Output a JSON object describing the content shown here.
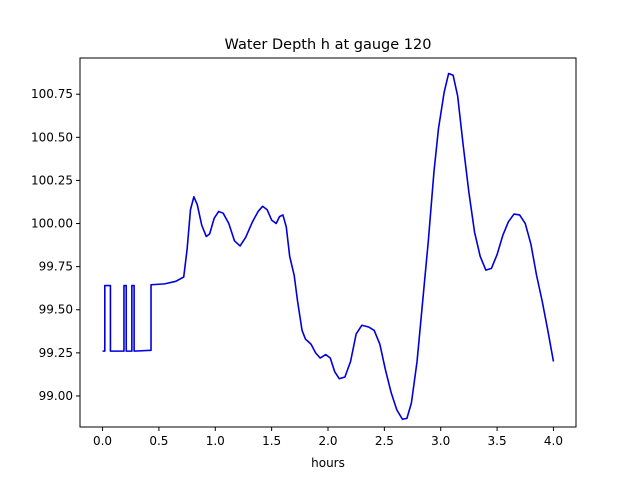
{
  "chart_data": {
    "type": "line",
    "title": "Water Depth h at gauge 120",
    "xlabel": "hours",
    "ylabel": "",
    "xlim": [
      -0.2,
      4.2
    ],
    "ylim": [
      98.82,
      100.96
    ],
    "xticks": [
      0.0,
      0.5,
      1.0,
      1.5,
      2.0,
      2.5,
      3.0,
      3.5,
      4.0
    ],
    "xtick_labels": [
      "0.0",
      "0.5",
      "1.0",
      "1.5",
      "2.0",
      "2.5",
      "3.0",
      "3.5",
      "4.0"
    ],
    "yticks": [
      99.0,
      99.25,
      99.5,
      99.75,
      100.0,
      100.25,
      100.5,
      100.75
    ],
    "ytick_labels": [
      "99.00",
      "99.25",
      "99.50",
      "99.75",
      "100.00",
      "100.25",
      "100.50",
      "100.75"
    ],
    "grid": false,
    "series": [
      {
        "color": "#0000dd",
        "points": [
          [
            0.0,
            99.26
          ],
          [
            0.02,
            99.26
          ],
          [
            0.02,
            99.64
          ],
          [
            0.07,
            99.64
          ],
          [
            0.07,
            99.26
          ],
          [
            0.19,
            99.26
          ],
          [
            0.19,
            99.64
          ],
          [
            0.21,
            99.64
          ],
          [
            0.21,
            99.26
          ],
          [
            0.26,
            99.26
          ],
          [
            0.26,
            99.64
          ],
          [
            0.28,
            99.64
          ],
          [
            0.28,
            99.26
          ],
          [
            0.43,
            99.265
          ],
          [
            0.43,
            99.645
          ],
          [
            0.55,
            99.65
          ],
          [
            0.65,
            99.665
          ],
          [
            0.72,
            99.69
          ],
          [
            0.75,
            99.85
          ],
          [
            0.78,
            100.08
          ],
          [
            0.81,
            100.155
          ],
          [
            0.84,
            100.11
          ],
          [
            0.88,
            99.99
          ],
          [
            0.92,
            99.925
          ],
          [
            0.95,
            99.94
          ],
          [
            0.99,
            100.03
          ],
          [
            1.03,
            100.07
          ],
          [
            1.07,
            100.06
          ],
          [
            1.12,
            100.0
          ],
          [
            1.17,
            99.9
          ],
          [
            1.22,
            99.87
          ],
          [
            1.27,
            99.92
          ],
          [
            1.33,
            100.01
          ],
          [
            1.38,
            100.07
          ],
          [
            1.42,
            100.1
          ],
          [
            1.46,
            100.08
          ],
          [
            1.5,
            100.02
          ],
          [
            1.54,
            100.0
          ],
          [
            1.57,
            100.04
          ],
          [
            1.6,
            100.05
          ],
          [
            1.63,
            99.98
          ],
          [
            1.66,
            99.81
          ],
          [
            1.7,
            99.7
          ],
          [
            1.73,
            99.55
          ],
          [
            1.77,
            99.38
          ],
          [
            1.8,
            99.33
          ],
          [
            1.85,
            99.3
          ],
          [
            1.89,
            99.25
          ],
          [
            1.93,
            99.22
          ],
          [
            1.98,
            99.24
          ],
          [
            2.02,
            99.22
          ],
          [
            2.06,
            99.14
          ],
          [
            2.1,
            99.1
          ],
          [
            2.15,
            99.11
          ],
          [
            2.2,
            99.2
          ],
          [
            2.25,
            99.36
          ],
          [
            2.3,
            99.41
          ],
          [
            2.36,
            99.4
          ],
          [
            2.41,
            99.38
          ],
          [
            2.46,
            99.3
          ],
          [
            2.51,
            99.15
          ],
          [
            2.56,
            99.02
          ],
          [
            2.61,
            98.92
          ],
          [
            2.66,
            98.865
          ],
          [
            2.7,
            98.87
          ],
          [
            2.74,
            98.96
          ],
          [
            2.79,
            99.2
          ],
          [
            2.84,
            99.55
          ],
          [
            2.89,
            99.9
          ],
          [
            2.94,
            100.3
          ],
          [
            2.98,
            100.55
          ],
          [
            3.03,
            100.76
          ],
          [
            3.07,
            100.87
          ],
          [
            3.11,
            100.86
          ],
          [
            3.15,
            100.74
          ],
          [
            3.2,
            100.45
          ],
          [
            3.25,
            100.18
          ],
          [
            3.3,
            99.95
          ],
          [
            3.35,
            99.81
          ],
          [
            3.4,
            99.73
          ],
          [
            3.45,
            99.74
          ],
          [
            3.5,
            99.82
          ],
          [
            3.55,
            99.93
          ],
          [
            3.6,
            100.01
          ],
          [
            3.65,
            100.055
          ],
          [
            3.7,
            100.05
          ],
          [
            3.75,
            100.0
          ],
          [
            3.8,
            99.88
          ],
          [
            3.85,
            99.7
          ],
          [
            3.9,
            99.55
          ],
          [
            3.95,
            99.38
          ],
          [
            4.0,
            99.2
          ]
        ]
      }
    ]
  }
}
